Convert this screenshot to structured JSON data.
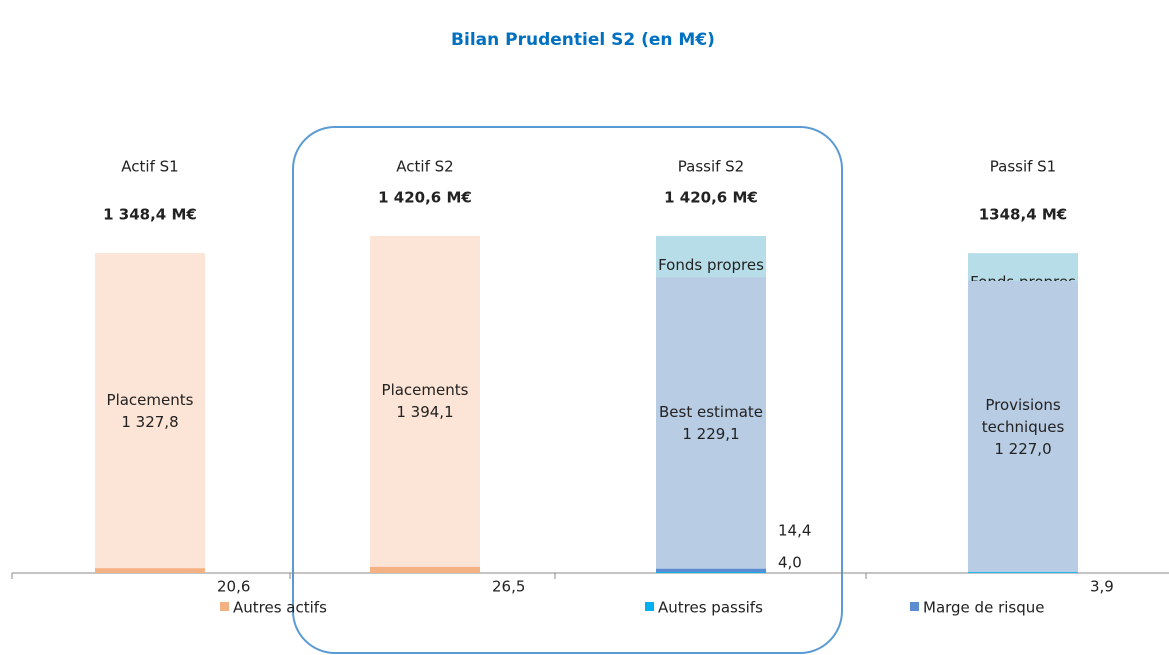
{
  "chart_data": {
    "type": "stacked_bar",
    "title": "Bilan Prudentiel S2 (en M€)",
    "ylim": [
      0,
      1420.6
    ],
    "categories": [
      "Actif  S1",
      "Actif  S2",
      "Passif S2",
      "Passif S1"
    ],
    "totals": [
      1348.4,
      1420.6,
      1420.6,
      1348.4
    ],
    "total_labels": [
      "1 348,4 M€",
      "1 420,6 M€",
      "1 420,6 M€",
      "1348,4 M€"
    ],
    "bars": [
      {
        "segments": [
          {
            "name": "Autres actifs",
            "color": "#f4b183",
            "value": 20.6,
            "value_label": "20,6"
          },
          {
            "name": "Placements",
            "color": "#fce4d6",
            "value": 1327.8,
            "value_label": "1 327,8"
          }
        ]
      },
      {
        "segments": [
          {
            "name": "Autres actifs",
            "color": "#f4b183",
            "value": 26.5,
            "value_label": "26,5"
          },
          {
            "name": "Placements",
            "color": "#fce4d6",
            "value": 1394.1,
            "value_label": "1 394,1"
          }
        ]
      },
      {
        "segments": [
          {
            "name": "Autres passifs",
            "color": "#00b0f0",
            "value": 4.0,
            "value_label": "4,0"
          },
          {
            "name": "Marge de risque",
            "color": "#5b8bd0",
            "value": 14.4,
            "value_label": "14,4"
          },
          {
            "name": "Best estimate",
            "color": "#b8cce4",
            "value": 1229.1,
            "value_label": "1 229,1"
          },
          {
            "name": "Fonds propres",
            "color": "#b7dee8",
            "value": 173.1,
            "value_label": "173,1"
          }
        ]
      },
      {
        "segments": [
          {
            "name": "Autres passifs",
            "color": "#00b0f0",
            "value": 3.9,
            "value_label": "3,9"
          },
          {
            "name": "Provisions techniques",
            "color": "#b8cce4",
            "value": 1227.0,
            "value_label": "1 227,0"
          },
          {
            "name": "Fonds propres",
            "color": "#b7dee8",
            "value": 117.5,
            "value_label": "117,5"
          }
        ]
      }
    ]
  }
}
